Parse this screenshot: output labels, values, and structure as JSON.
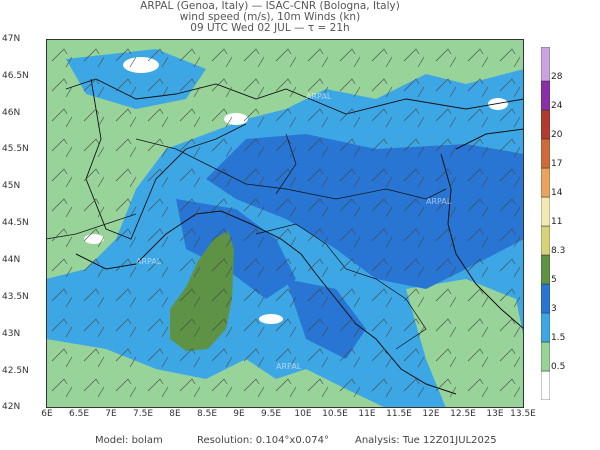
{
  "header": {
    "line1": "ARPAL (Genoa, Italy)  —  ISAC-CNR (Bologna, Italy)",
    "line2": "wind speed (m/s), 10m Winds (kn)",
    "line3": "09 UTC Wed 02 JUL  —  τ = 21h"
  },
  "axes": {
    "lat_labels": [
      "47N",
      "46.5N",
      "46N",
      "45.5N",
      "45N",
      "44.5N",
      "44N",
      "43.5N",
      "43N",
      "42.5N",
      "42N"
    ],
    "lon_labels": [
      "6E",
      "6.5E",
      "7E",
      "7.5E",
      "8E",
      "8.5E",
      "9E",
      "9.5E",
      "10E",
      "10.5E",
      "11E",
      "11.5E",
      "12E",
      "12.5E",
      "13E",
      "13.5E"
    ]
  },
  "colorbar": {
    "labels": [
      "28",
      "24",
      "20",
      "17",
      "14",
      "11",
      "8.3",
      "5",
      "3",
      "1.5",
      "0.5"
    ],
    "colors": {
      "c0": "#ffffff",
      "c1": "#98d39a",
      "c2": "#3da7e6",
      "c3": "#2875d3",
      "c4": "#5e9345",
      "c5": "#d9d07a",
      "c6": "#f2e8b3",
      "c7": "#e9a35e",
      "c8": "#cf6a3b",
      "c9": "#b33a2e",
      "c10": "#8b2fa8",
      "c11": "#c9a4e0"
    }
  },
  "watermark": "ARPAL",
  "footer": {
    "model": "Model: bolam",
    "resolution": "Resolution: 0.104°x0.074°",
    "analysis": "Analysis: Tue 12Z01JUL2025"
  }
}
